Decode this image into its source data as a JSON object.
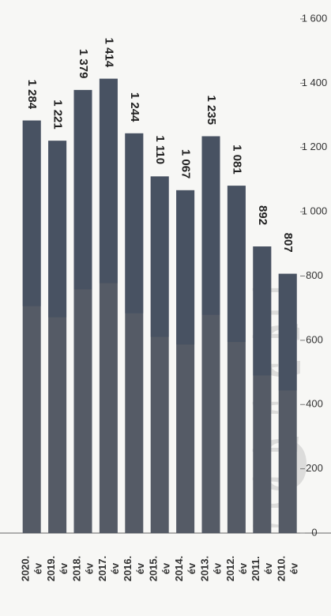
{
  "chart_data": {
    "type": "bar",
    "orientation": "horizontal",
    "rotation": 90,
    "watermark": [
      "P",
      "O",
      "L",
      "I",
      "C",
      "E"
    ],
    "categories": [
      [
        "2010.",
        "év"
      ],
      [
        "2011.",
        "év"
      ],
      [
        "2012.",
        "év"
      ],
      [
        "2013.",
        "év"
      ],
      [
        "2014.",
        "év"
      ],
      [
        "2015.",
        "év"
      ],
      [
        "2016.",
        "év"
      ],
      [
        "2017.",
        "év"
      ],
      [
        "2018.",
        "év"
      ],
      [
        "2019.",
        "év"
      ],
      [
        "2020.",
        "év"
      ]
    ],
    "values": [
      807,
      892,
      1081,
      1235,
      1067,
      1110,
      1244,
      1414,
      1379,
      1221,
      1284
    ],
    "data_labels": [
      "807",
      "892",
      "1 081",
      "1 235",
      "1 067",
      "1 110",
      "1 244",
      "1 414",
      "1 379",
      "1 221",
      "1 284"
    ],
    "ticks": [
      0,
      200,
      400,
      600,
      800,
      1000,
      1200,
      1400,
      1600
    ],
    "tick_labels": [
      "0",
      "200",
      "400",
      "600",
      "800",
      "1 000",
      "1 200",
      "1 400",
      "1 600"
    ],
    "ylim": [
      0,
      1600
    ],
    "grid": false,
    "colors": {
      "bar": "#555b66",
      "bar_dark": "#3e4a5f"
    }
  }
}
